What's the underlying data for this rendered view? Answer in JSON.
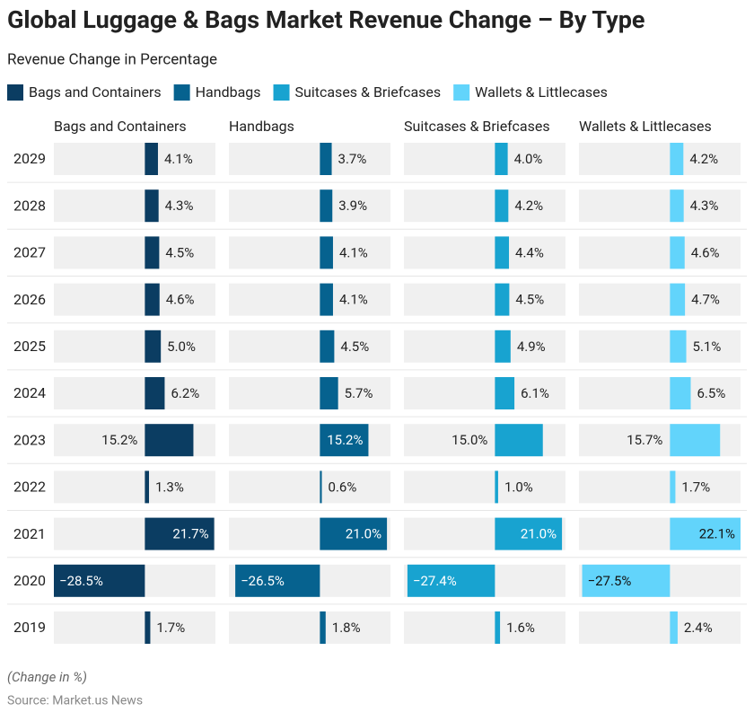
{
  "chart_data": {
    "type": "bar",
    "orientation": "horizontal",
    "title": "Global Luggage & Bags Market Revenue Change – By Type",
    "subtitle": "Revenue Change in Percentage",
    "note": "(Change in %)",
    "source": "Source: Market.us News",
    "categories": [
      "2029",
      "2028",
      "2027",
      "2026",
      "2025",
      "2024",
      "2023",
      "2022",
      "2021",
      "2020",
      "2019"
    ],
    "xlim": [
      -28.5,
      22.1
    ],
    "series": [
      {
        "name": "Bags and Containers",
        "color": "#0b3d62",
        "values": [
          4.1,
          4.3,
          4.5,
          4.6,
          5.0,
          6.2,
          15.2,
          1.3,
          21.7,
          -28.5,
          1.7
        ],
        "value_labels": [
          "4.1%",
          "4.3%",
          "4.5%",
          "4.6%",
          "5.0%",
          "6.2%",
          "15.2%",
          "1.3%",
          "21.7%",
          "−28.5%",
          "1.7%"
        ]
      },
      {
        "name": "Handbags",
        "color": "#06628f",
        "values": [
          3.7,
          3.9,
          4.1,
          4.1,
          4.5,
          5.7,
          15.2,
          0.6,
          21.0,
          -26.5,
          1.8
        ],
        "value_labels": [
          "3.7%",
          "3.9%",
          "4.1%",
          "4.1%",
          "4.5%",
          "5.7%",
          "15.2%",
          "0.6%",
          "21.0%",
          "−26.5%",
          "1.8%"
        ]
      },
      {
        "name": "Suitcases & Briefcases",
        "color": "#18a3d0",
        "values": [
          4.0,
          4.2,
          4.4,
          4.5,
          4.9,
          6.1,
          15.0,
          1.0,
          21.0,
          -27.4,
          1.6
        ],
        "value_labels": [
          "4.0%",
          "4.2%",
          "4.4%",
          "4.5%",
          "4.9%",
          "6.1%",
          "15.0%",
          "1.0%",
          "21.0%",
          "−27.4%",
          "1.6%"
        ]
      },
      {
        "name": "Wallets & Littlecases",
        "color": "#62d4fb",
        "values": [
          4.2,
          4.3,
          4.6,
          4.7,
          5.1,
          6.5,
          15.7,
          1.7,
          22.1,
          -27.5,
          2.4
        ],
        "value_labels": [
          "4.2%",
          "4.3%",
          "4.6%",
          "4.7%",
          "5.1%",
          "6.5%",
          "15.7%",
          "1.7%",
          "22.1%",
          "−27.5%",
          "2.4%"
        ]
      }
    ]
  }
}
